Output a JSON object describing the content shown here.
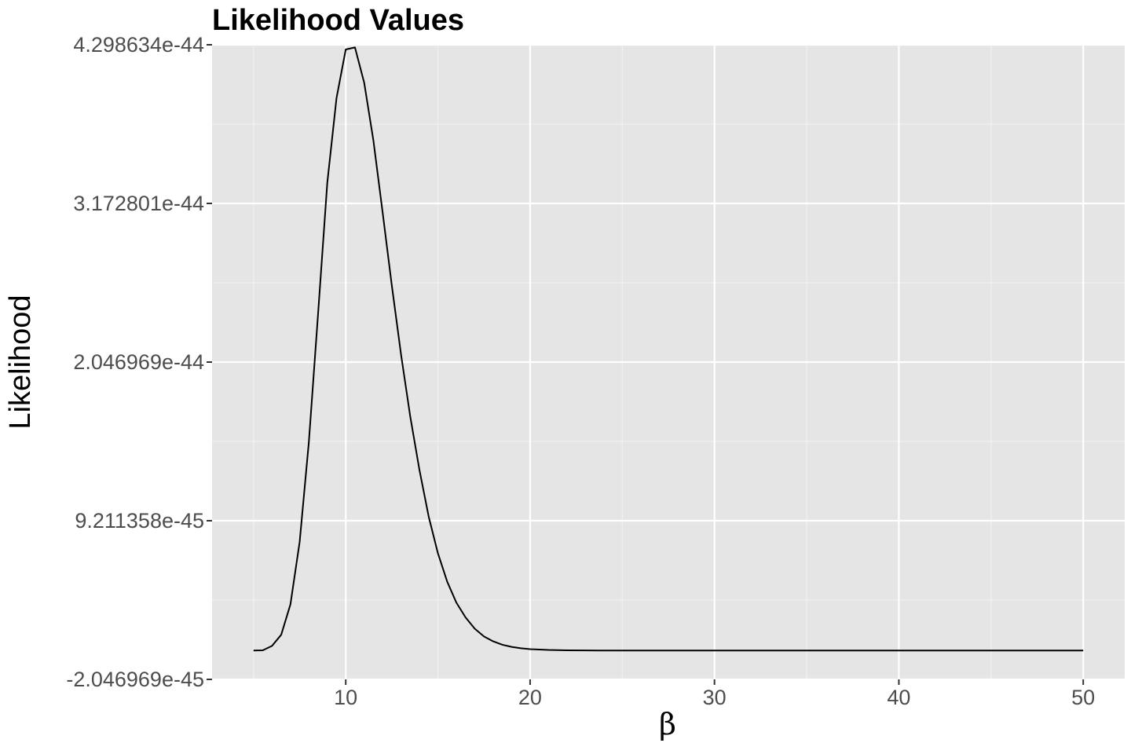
{
  "chart_data": {
    "type": "line",
    "title": "Likelihood Values",
    "xlabel": "β",
    "ylabel": "Likelihood",
    "grid": true,
    "xlim": [
      2.75,
      52.25
    ],
    "ylim": [
      -2.046969e-45,
      4.298634e-44
    ],
    "x_ticks": [
      10,
      20,
      30,
      40,
      50
    ],
    "x_tick_labels": [
      "10",
      "20",
      "30",
      "40",
      "50"
    ],
    "x_minor_ticks": [
      5,
      15,
      25,
      35,
      45
    ],
    "y_ticks": [
      -2.046969e-45,
      9.211358e-45,
      2.046969e-44,
      3.172801e-44,
      4.298634e-44
    ],
    "y_tick_labels": [
      "-2.046969e-45",
      "9.211358e-45",
      "2.046969e-44",
      "3.172801e-44",
      "4.298634e-44"
    ],
    "y_minor_ticks": [
      3.5822e-45,
      1.48409e-44,
      2.60989e-44,
      3.73572e-44
    ],
    "series": [
      {
        "color": "#000000",
        "x": [
          5,
          5.5,
          6,
          6.5,
          7,
          7.5,
          8,
          8.5,
          9,
          9.5,
          10,
          10.5,
          11,
          11.5,
          12,
          12.5,
          13,
          13.5,
          14,
          14.5,
          15,
          15.5,
          16,
          16.5,
          17,
          17.5,
          18,
          18.5,
          19,
          19.5,
          20,
          21,
          22,
          23,
          24,
          25,
          30,
          35,
          40,
          45,
          50
        ],
        "y": [
          0,
          1.5e-47,
          3.3e-46,
          1.12e-45,
          3.27e-45,
          7.7e-45,
          1.48e-44,
          2.39e-44,
          3.32e-44,
          3.92e-44,
          4.265e-44,
          4.28e-44,
          4.03e-44,
          3.62e-44,
          3.11e-44,
          2.59e-44,
          2.1e-44,
          1.66e-44,
          1.28e-44,
          9.5e-45,
          6.9e-45,
          4.9e-45,
          3.4e-45,
          2.35e-45,
          1.55e-45,
          1e-45,
          6.5e-46,
          4.1e-46,
          2.6e-46,
          1.6e-46,
          1e-46,
          4e-47,
          1.5e-47,
          5e-48,
          2e-48,
          1e-48,
          0,
          0,
          0,
          0,
          0
        ]
      }
    ]
  }
}
